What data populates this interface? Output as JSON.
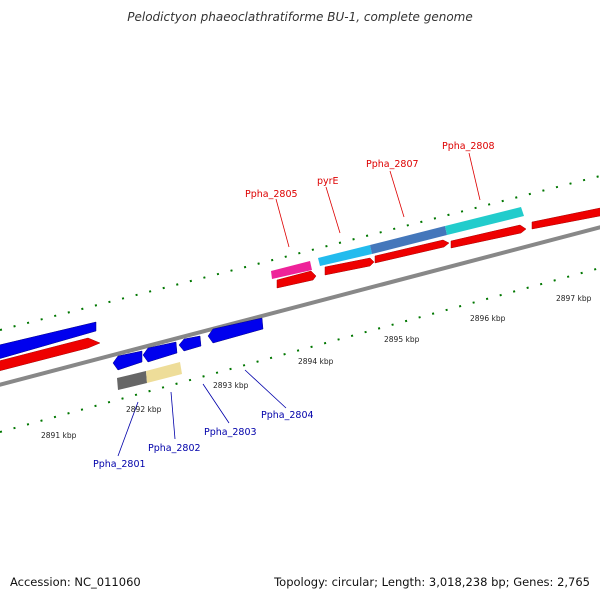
{
  "title": "Pelodictyon phaeoclathratiforme BU-1, complete genome",
  "footer": {
    "accession": "Accession: NC_011060",
    "summary": "Topology: circular; Length: 3,018,238 bp; Genes: 2,765"
  },
  "colors": {
    "backbone": "#808080",
    "forward_cds": "#ff0000",
    "reverse_cds": "#0000ee",
    "tick": "#007700",
    "label_forward": "#dd0000",
    "label_reverse": "#0000aa"
  },
  "scale_labels": [
    "2891 kbp",
    "2892 kbp",
    "2893 kbp",
    "2894 kbp",
    "2895 kbp",
    "2896 kbp",
    "2897 kbp"
  ],
  "forward_labels": [
    "Ppha_2805",
    "pyrE",
    "Ppha_2807",
    "Ppha_2808"
  ],
  "reverse_labels": [
    "Ppha_2801",
    "Ppha_2802",
    "Ppha_2803",
    "Ppha_2804"
  ],
  "feature_colors": {
    "Ppha_2805": "#ee2299",
    "pyrE": "#22bbee",
    "Ppha_2807": "#4477bb",
    "Ppha_2808": "#22cccc",
    "Ppha_2801": "#666666",
    "Ppha_2802": "#eedd99"
  }
}
